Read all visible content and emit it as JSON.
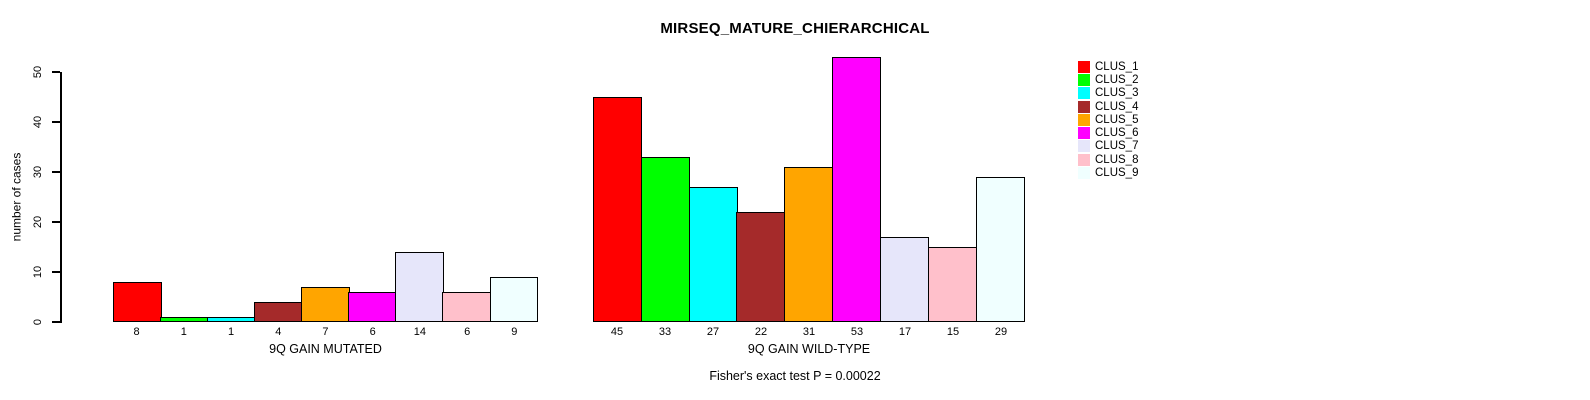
{
  "chart_data": {
    "type": "bar",
    "title": "MIRSEQ_MATURE_CHIERARCHICAL",
    "ylabel": "number of cases",
    "ylim": [
      0,
      55
    ],
    "yticks": [
      0,
      10,
      20,
      30,
      40,
      50
    ],
    "grid": false,
    "legend_position": "right",
    "clusters": [
      {
        "name": "CLUS_1",
        "color": "#FF0000"
      },
      {
        "name": "CLUS_2",
        "color": "#00FF00"
      },
      {
        "name": "CLUS_3",
        "color": "#00FFFF"
      },
      {
        "name": "CLUS_4",
        "color": "#A52A2A"
      },
      {
        "name": "CLUS_5",
        "color": "#FFA500"
      },
      {
        "name": "CLUS_6",
        "color": "#FF00FF"
      },
      {
        "name": "CLUS_7",
        "color": "#E6E6FA"
      },
      {
        "name": "CLUS_8",
        "color": "#FFC0CB"
      },
      {
        "name": "CLUS_9",
        "color": "#F0FFFF"
      }
    ],
    "groups": [
      {
        "label": "9Q GAIN MUTATED",
        "bar_labels": [
          "8",
          "1",
          "1",
          "4",
          "7",
          "6",
          "14",
          "6",
          "9"
        ],
        "values": [
          8,
          1,
          1,
          4,
          7,
          6,
          14,
          6,
          9
        ]
      },
      {
        "label": "9Q GAIN WILD-TYPE",
        "bar_labels": [
          "45",
          "33",
          "27",
          "22",
          "31",
          "53",
          "17",
          "15",
          "29"
        ],
        "values": [
          45,
          33,
          27,
          22,
          31,
          53,
          17,
          15,
          29
        ]
      }
    ],
    "annotation": "Fisher's exact test P = 0.00022"
  },
  "colors": {
    "background": "#FFFFFF",
    "axis": "#000000",
    "text": "#000000"
  }
}
